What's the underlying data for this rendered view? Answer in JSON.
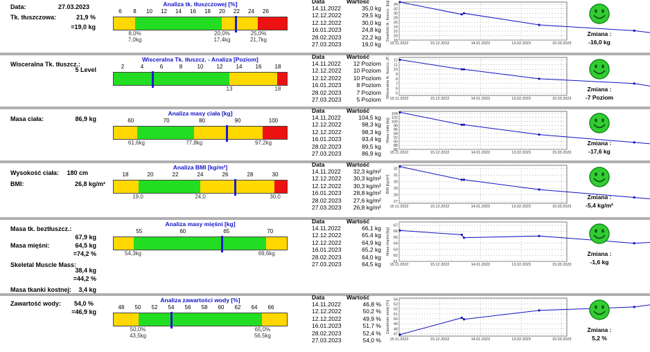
{
  "header": {
    "date_label": "Data:",
    "date_value": "27.03.2023"
  },
  "table_headers": {
    "date": "Data",
    "value": "Wartość"
  },
  "chart_x_ticks": [
    "15.11.2022",
    "15.12.2022",
    "14.01.2023",
    "13.02.2023",
    "15.03.2023"
  ],
  "colors": {
    "yellow": "#ffd800",
    "green": "#22dd22",
    "red": "#ee1111",
    "marker": "#1c1cd0",
    "title_blue": "#1414c8",
    "line": "#1010c0"
  },
  "sections": [
    {
      "id": "fat",
      "labels": [
        {
          "t": "Tk. tłuszczowa:"
        }
      ],
      "values": [
        {
          "t": "21,9 %"
        },
        {
          "t": "=19,0 kg"
        }
      ],
      "analysis_title": "Analiza tk. tłuszczowej [%]",
      "scale": {
        "min": 5,
        "max": 29,
        "ticks": [
          "6",
          "8",
          "10",
          "12",
          "14",
          "16",
          "18",
          "20",
          "22",
          "24",
          "26"
        ],
        "tick_values": [
          6,
          8,
          10,
          12,
          14,
          16,
          18,
          20,
          22,
          24,
          26
        ]
      },
      "zones": [
        {
          "from": 5,
          "to": 8,
          "c": "yellow"
        },
        {
          "from": 8,
          "to": 20,
          "c": "green"
        },
        {
          "from": 20,
          "to": 25,
          "c": "yellow"
        },
        {
          "from": 25,
          "to": 29,
          "c": "red"
        }
      ],
      "marker": 21.9,
      "bar_labels": [
        {
          "v": 8,
          "l1": "8,0%",
          "l2": "7,0kg"
        },
        {
          "v": 20,
          "l1": "20,0%",
          "l2": "17,4kg"
        },
        {
          "v": 25,
          "l1": "25,0%",
          "l2": "21,7kg"
        }
      ],
      "table": [
        [
          "14.11.2022",
          "35,0 kg"
        ],
        [
          "12.12.2022",
          "29,5 kg"
        ],
        [
          "12.12.2022",
          "30,0 kg"
        ],
        [
          "16.01.2023",
          "24,8 kg"
        ],
        [
          "28.02.2023",
          "22,2 kg"
        ],
        [
          "27.03.2023",
          "19,0 kg"
        ]
      ],
      "chart_ylabel": "Zwartość tk. tłuszcz. [kg]",
      "change_label": "Zmiana :",
      "change_value": "-16,0 kg"
    },
    {
      "id": "visc",
      "labels": [
        {
          "t": "Wisceralna Tk. tłuszcz.:"
        }
      ],
      "values": [
        {
          "t": "5 Level"
        }
      ],
      "analysis_title": "Wisceralna Tk. tłuszcz. - Analiza [Poziom]",
      "scale": {
        "min": 1,
        "max": 19,
        "ticks": [
          "2",
          "4",
          "6",
          "8",
          "10",
          "12",
          "14",
          "16",
          "18"
        ],
        "tick_values": [
          2,
          4,
          6,
          8,
          10,
          12,
          14,
          16,
          18
        ]
      },
      "zones": [
        {
          "from": 1,
          "to": 13,
          "c": "green"
        },
        {
          "from": 13,
          "to": 18,
          "c": "yellow"
        },
        {
          "from": 18,
          "to": 19,
          "c": "red"
        }
      ],
      "marker": 5,
      "bar_labels": [
        {
          "v": 13,
          "l1": "13",
          "l2": ""
        },
        {
          "v": 18,
          "l1": "18",
          "l2": ""
        }
      ],
      "table": [
        [
          "14.11.2022",
          "12 Poziom"
        ],
        [
          "12.12.2022",
          "10 Poziom"
        ],
        [
          "12.12.2022",
          "10 Poziom"
        ],
        [
          "16.01.2023",
          "8 Poziom"
        ],
        [
          "28.02.2023",
          "7 Poziom"
        ],
        [
          "27.03.2023",
          "5 Poziom"
        ]
      ],
      "chart_ylabel": "Wisceralna tk. tłuszcz. [P...",
      "change_label": "Zmiana :",
      "change_value": "-7 Poziom"
    },
    {
      "id": "mass",
      "labels": [
        {
          "t": "Masa ciała:"
        }
      ],
      "values": [
        {
          "t": "86,9 kg"
        }
      ],
      "analysis_title": "Analiza masy ciała [kg]",
      "scale": {
        "min": 55,
        "max": 104,
        "ticks": [
          "60",
          "70",
          "80",
          "90",
          "100"
        ],
        "tick_values": [
          60,
          70,
          80,
          90,
          100
        ]
      },
      "zones": [
        {
          "from": 55,
          "to": 61.6,
          "c": "yellow"
        },
        {
          "from": 61.6,
          "to": 77.8,
          "c": "green"
        },
        {
          "from": 77.8,
          "to": 97.2,
          "c": "yellow"
        },
        {
          "from": 97.2,
          "to": 104,
          "c": "red"
        }
      ],
      "marker": 86.9,
      "bar_labels": [
        {
          "v": 61.6,
          "l1": "61,6kg",
          "l2": ""
        },
        {
          "v": 77.8,
          "l1": "77,8kg",
          "l2": ""
        },
        {
          "v": 97.2,
          "l1": "97,2kg",
          "l2": ""
        }
      ],
      "table": [
        [
          "14.11.2022",
          "104,5 kg"
        ],
        [
          "12.12.2022",
          "98,3 kg"
        ],
        [
          "12.12.2022",
          "98,3 kg"
        ],
        [
          "16.01.2023",
          "93,4 kg"
        ],
        [
          "28.02.2023",
          "89,5 kg"
        ],
        [
          "27.03.2023",
          "86,9 kg"
        ]
      ],
      "chart_ylabel": "Masa ciała [kg]",
      "change_label": "Zmiana :",
      "change_value": "-17,6 kg"
    },
    {
      "id": "bmi",
      "labels": [
        {
          "t": "Wysokość ciała:"
        },
        {
          "t": "BMI:"
        }
      ],
      "values": [
        {
          "t": "180 cm"
        },
        {
          "t": "26,8 kg/m²"
        }
      ],
      "analysis_title": "Analiza BMI [kg/m²]",
      "scale": {
        "min": 17,
        "max": 31,
        "ticks": [
          "18",
          "20",
          "22",
          "24",
          "26",
          "28",
          "30"
        ],
        "tick_values": [
          18,
          20,
          22,
          24,
          26,
          28,
          30
        ]
      },
      "zones": [
        {
          "from": 17,
          "to": 19,
          "c": "yellow"
        },
        {
          "from": 19,
          "to": 24,
          "c": "green"
        },
        {
          "from": 24,
          "to": 30,
          "c": "yellow"
        },
        {
          "from": 30,
          "to": 31,
          "c": "red"
        }
      ],
      "marker": 26.8,
      "bar_labels": [
        {
          "v": 19,
          "l1": "19,0",
          "l2": ""
        },
        {
          "v": 24,
          "l1": "24,0",
          "l2": ""
        },
        {
          "v": 30,
          "l1": "30,0",
          "l2": ""
        }
      ],
      "table": [
        [
          "14.11.2022",
          "32,3 kg/m²"
        ],
        [
          "12.12.2022",
          "30,3 kg/m²"
        ],
        [
          "12.12.2022",
          "30,3 kg/m²"
        ],
        [
          "16.01.2023",
          "28,8 kg/m²"
        ],
        [
          "28.02.2023",
          "27,6 kg/m²"
        ],
        [
          "27.03.2023",
          "26,8 kg/m²"
        ]
      ],
      "chart_ylabel": "BMI [kg/m²]",
      "change_label": "Zmiana :",
      "change_value": "-5,4 kg/m²"
    },
    {
      "id": "muscle",
      "labels": [
        {
          "t": "Masa tk. beztłuszcz.:"
        },
        {
          "t": "Masa mięśni:"
        },
        {
          "t": "Skeletal Muscle Mass:"
        },
        {
          "t": "Masa tkanki kostnej:"
        }
      ],
      "values": [
        {
          "t": "67,9 kg"
        },
        {
          "t": "64,5 kg"
        },
        {
          "t": "=74,2 %"
        },
        {
          "t": "38,4 kg"
        },
        {
          "t": "=44,2 %"
        },
        {
          "t": "3,4 kg"
        }
      ],
      "analysis_title": "Analiza masy mięśni [kg]",
      "scale": {
        "min": 52,
        "max": 72,
        "ticks": [
          "55",
          "60",
          "65",
          "70"
        ],
        "tick_values": [
          55,
          60,
          65,
          70
        ]
      },
      "zones": [
        {
          "from": 52,
          "to": 54.3,
          "c": "yellow"
        },
        {
          "from": 54.3,
          "to": 69.6,
          "c": "green"
        },
        {
          "from": 69.6,
          "to": 72,
          "c": "yellow"
        }
      ],
      "marker": 64.5,
      "bar_labels": [
        {
          "v": 54.3,
          "l1": "54,3kg",
          "l2": ""
        },
        {
          "v": 69.6,
          "l1": "69,6kg",
          "l2": ""
        }
      ],
      "table": [
        [
          "14.11.2022",
          "66,1 kg"
        ],
        [
          "12.12.2022",
          "65,4 kg"
        ],
        [
          "12.12.2022",
          "64,9 kg"
        ],
        [
          "16.01.2023",
          "65,2 kg"
        ],
        [
          "28.02.2023",
          "64,0 kg"
        ],
        [
          "27.03.2023",
          "64,5 kg"
        ]
      ],
      "chart_ylabel": "Masa mięśni [kg]",
      "change_label": "Zmiana :",
      "change_value": "-1,6 kg"
    },
    {
      "id": "water",
      "labels": [
        {
          "t": "Zawartość wody:"
        }
      ],
      "values": [
        {
          "t": "54,0 %"
        },
        {
          "t": "=46,9 kg"
        }
      ],
      "analysis_title": "Analiza zawartości wody [%]",
      "scale": {
        "min": 47,
        "max": 68,
        "ticks": [
          "48",
          "50",
          "52",
          "54",
          "56",
          "58",
          "60",
          "62",
          "64",
          "66"
        ],
        "tick_values": [
          48,
          50,
          52,
          54,
          56,
          58,
          60,
          62,
          64,
          66
        ]
      },
      "zones": [
        {
          "from": 47,
          "to": 50,
          "c": "yellow"
        },
        {
          "from": 50,
          "to": 65,
          "c": "green"
        },
        {
          "from": 65,
          "to": 68,
          "c": "yellow"
        }
      ],
      "marker": 54.0,
      "bar_labels": [
        {
          "v": 50,
          "l1": "50,0%",
          "l2": "43,5kg"
        },
        {
          "v": 65,
          "l1": "65,0%",
          "l2": "56,5kg"
        }
      ],
      "table": [
        [
          "14.11.2022",
          "46,8 %"
        ],
        [
          "12.12.2022",
          "50,2 %"
        ],
        [
          "12.12.2022",
          "49,9 %"
        ],
        [
          "16.01.2023",
          "51,7 %"
        ],
        [
          "28.02.2023",
          "52,4 %"
        ],
        [
          "27.03.2023",
          "54,0 %"
        ]
      ],
      "chart_ylabel": "Zawartość wody [%]",
      "change_label": "Zmiana :",
      "change_value": "5,2 %"
    }
  ],
  "chart_data": [
    {
      "type": "line",
      "x": [
        "14.11.2022",
        "12.12.2022",
        "12.12.2022",
        "16.01.2023",
        "28.02.2023",
        "27.03.2023"
      ],
      "series": [
        {
          "values": [
            35.0,
            29.5,
            30.0,
            24.8,
            22.2,
            19.0
          ]
        }
      ],
      "ylim": [
        18,
        35
      ],
      "yticks": [
        18,
        20,
        22,
        24,
        26,
        28,
        30,
        32,
        34
      ],
      "ylabel": "Zwartość tk. tłuszcz. [kg]"
    },
    {
      "type": "line",
      "x": [
        "14.11.2022",
        "12.12.2022",
        "12.12.2022",
        "16.01.2023",
        "28.02.2023",
        "27.03.2023"
      ],
      "series": [
        {
          "values": [
            12,
            10,
            10,
            8,
            7,
            5
          ]
        }
      ],
      "ylim": [
        4.5,
        12.5
      ],
      "yticks": [
        5,
        6,
        7,
        8,
        9,
        10,
        11,
        12
      ],
      "ylabel": "Wisceralna tk. tłuszcz. [P..."
    },
    {
      "type": "line",
      "x": [
        "14.11.2022",
        "12.12.2022",
        "12.12.2022",
        "16.01.2023",
        "28.02.2023",
        "27.03.2023"
      ],
      "series": [
        {
          "values": [
            104.5,
            98.3,
            98.3,
            93.4,
            89.5,
            86.9
          ]
        }
      ],
      "ylim": [
        86,
        105
      ],
      "yticks": [
        86,
        88,
        90,
        92,
        94,
        96,
        98,
        100,
        102,
        104
      ],
      "ylabel": "Masa ciała [kg]"
    },
    {
      "type": "line",
      "x": [
        "14.11.2022",
        "12.12.2022",
        "12.12.2022",
        "16.01.2023",
        "28.02.2023",
        "27.03.2023"
      ],
      "series": [
        {
          "values": [
            32.3,
            30.3,
            30.3,
            28.8,
            27.6,
            26.8
          ]
        }
      ],
      "ylim": [
        26.7,
        32.5
      ],
      "yticks": [
        27,
        28,
        29,
        30,
        31,
        32
      ],
      "ylabel": "BMI [kg/m²]"
    },
    {
      "type": "line",
      "x": [
        "14.11.2022",
        "12.12.2022",
        "12.12.2022",
        "16.01.2023",
        "28.02.2023",
        "27.03.2023"
      ],
      "series": [
        {
          "values": [
            66.1,
            65.4,
            64.9,
            65.2,
            64.0,
            64.5
          ]
        }
      ],
      "ylim": [
        61,
        67.5
      ],
      "yticks": [
        61,
        62,
        63,
        64,
        65,
        66,
        67
      ],
      "ylabel": "Masa mięśni [kg]"
    },
    {
      "type": "line",
      "x": [
        "14.11.2022",
        "12.12.2022",
        "12.12.2022",
        "16.01.2023",
        "28.02.2023",
        "27.03.2023"
      ],
      "series": [
        {
          "values": [
            46.8,
            50.2,
            49.9,
            51.7,
            52.4,
            54.0
          ]
        }
      ],
      "ylim": [
        46.5,
        54.2
      ],
      "yticks": [
        47,
        48,
        49,
        50,
        51,
        52,
        53,
        54
      ],
      "ylabel": "Zawartość wody [%]"
    }
  ]
}
